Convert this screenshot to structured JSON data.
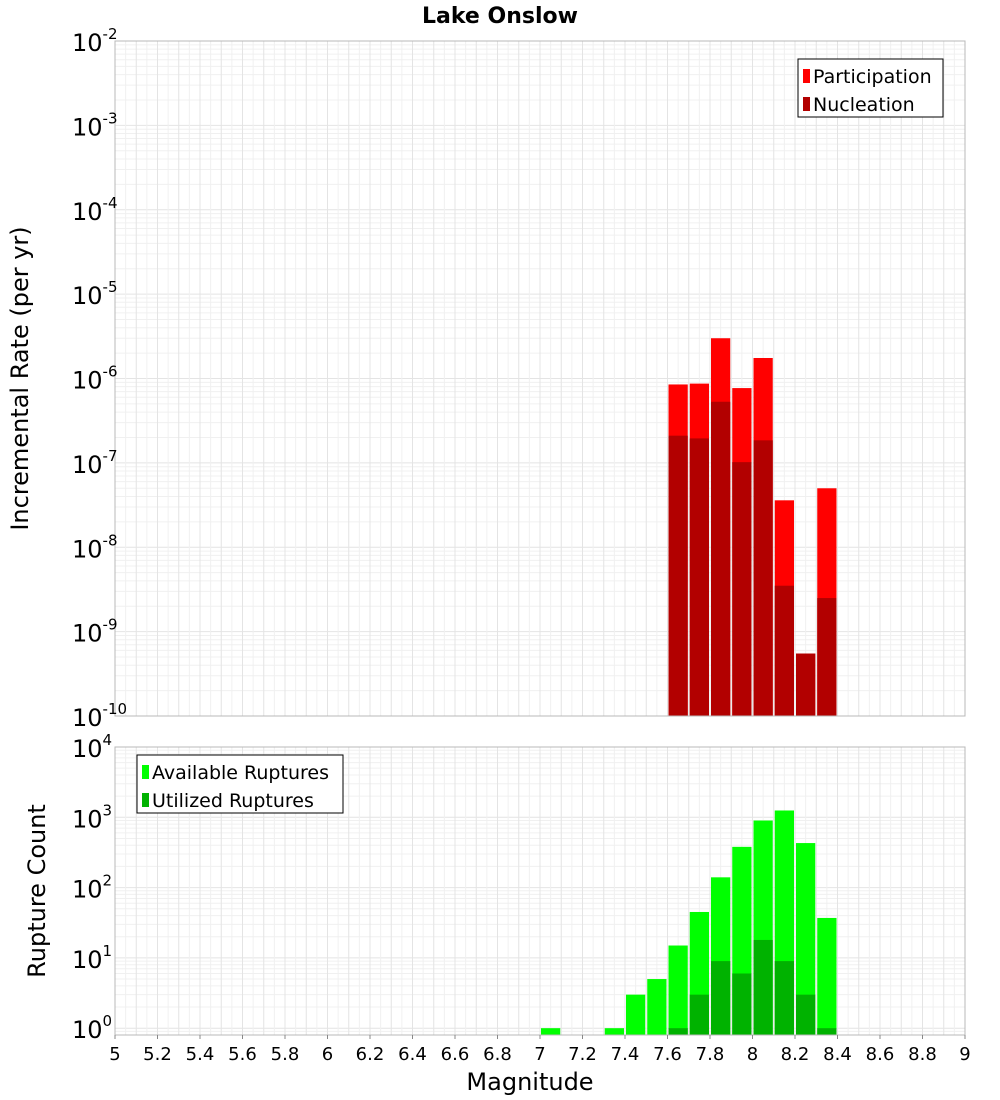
{
  "chart_data": [
    {
      "type": "bar",
      "title": "Lake Onslow",
      "xlabel": "Magnitude",
      "ylabel": "Incremental Rate (per yr)",
      "yscale": "log",
      "xlim": [
        5,
        9
      ],
      "ylim": [
        1e-10,
        0.01
      ],
      "ytick_exponents": [
        "-10",
        "-9",
        "-8",
        "-7",
        "-6",
        "-5",
        "-4",
        "-3",
        "-2"
      ],
      "bin_width": 0.1,
      "legend_position": "top-right",
      "colors": {
        "participation": "#ff0000",
        "nucleation": "#b20000"
      },
      "series": [
        {
          "name": "Participation",
          "bins": [
            7.65,
            7.75,
            7.85,
            7.95,
            8.05,
            8.15,
            8.25,
            8.35
          ],
          "values": [
            8.5e-07,
            8.7e-07,
            3e-06,
            7.7e-07,
            1.75e-06,
            3.6e-08,
            5.5e-10,
            5e-08
          ]
        },
        {
          "name": "Nucleation",
          "bins": [
            7.65,
            7.75,
            7.85,
            7.95,
            8.05,
            8.15,
            8.25,
            8.35
          ],
          "values": [
            2.1e-07,
            1.95e-07,
            5.3e-07,
            1.02e-07,
            1.85e-07,
            3.5e-09,
            5.5e-10,
            2.5e-09
          ]
        }
      ]
    },
    {
      "type": "bar",
      "xlabel": "Magnitude",
      "ylabel": "Rupture Count",
      "yscale": "log",
      "xlim": [
        5,
        9
      ],
      "ylim": [
        0.8,
        10000.0
      ],
      "ytick_exponents": [
        "0",
        "1",
        "2",
        "3",
        "4"
      ],
      "xticks": [
        "5",
        "5.2",
        "5.4",
        "5.6",
        "5.8",
        "6",
        "6.2",
        "6.4",
        "6.6",
        "6.8",
        "7",
        "7.2",
        "7.4",
        "7.6",
        "7.8",
        "8",
        "8.2",
        "8.4",
        "8.6",
        "8.8",
        "9"
      ],
      "bin_width": 0.1,
      "legend_position": "top-left",
      "colors": {
        "available": "#00ff00",
        "utilized": "#00b200"
      },
      "series": [
        {
          "name": "Available Ruptures",
          "bins": [
            7.05,
            7.35,
            7.45,
            7.55,
            7.65,
            7.75,
            7.85,
            7.95,
            8.05,
            8.15,
            8.25,
            8.35
          ],
          "values": [
            1,
            1,
            3,
            5,
            15,
            45,
            140,
            380,
            900,
            1250,
            430,
            37
          ]
        },
        {
          "name": "Utilized Ruptures",
          "bins": [
            7.65,
            7.75,
            7.85,
            7.95,
            8.05,
            8.15,
            8.25,
            8.35
          ],
          "values": [
            1,
            3,
            9,
            6,
            18,
            9,
            3,
            1
          ]
        }
      ]
    }
  ]
}
